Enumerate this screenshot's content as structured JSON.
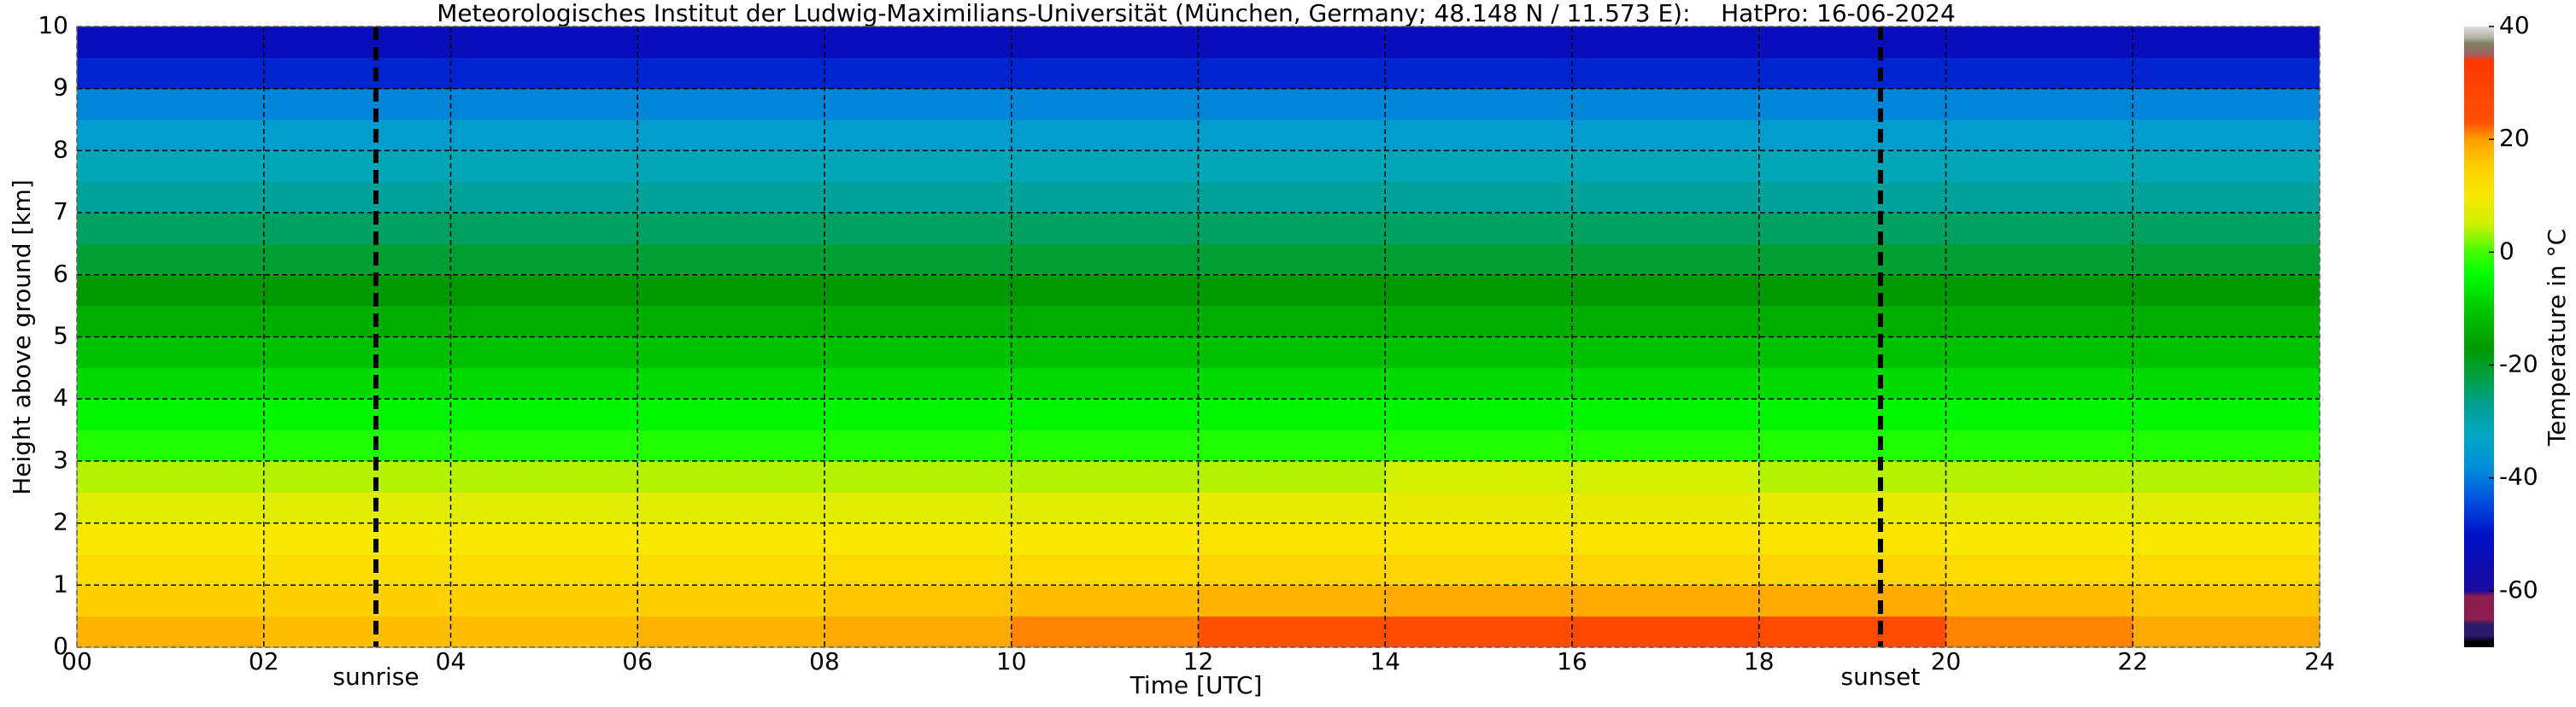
{
  "chart_data": {
    "type": "heatmap",
    "title": "Meteorologisches Institut der Ludwig-Maximilians-Universität (München, Germany; 48.148 N / 11.573 E):    HatPro: 16-06-2024",
    "xlabel": "Time [UTC]",
    "ylabel": "Height above ground [km]",
    "colorbar_label": "Temperature in °C",
    "xlim": [
      0,
      24
    ],
    "ylim": [
      0,
      10
    ],
    "xticks": [
      {
        "value": 0,
        "label": "00"
      },
      {
        "value": 2,
        "label": "02"
      },
      {
        "value": 4,
        "label": "04"
      },
      {
        "value": 6,
        "label": "06"
      },
      {
        "value": 8,
        "label": "08"
      },
      {
        "value": 10,
        "label": "10"
      },
      {
        "value": 12,
        "label": "12"
      },
      {
        "value": 14,
        "label": "14"
      },
      {
        "value": 16,
        "label": "16"
      },
      {
        "value": 18,
        "label": "18"
      },
      {
        "value": 20,
        "label": "20"
      },
      {
        "value": 22,
        "label": "22"
      },
      {
        "value": 24,
        "label": "24"
      }
    ],
    "yticks": [
      0,
      1,
      2,
      3,
      4,
      5,
      6,
      7,
      8,
      9,
      10
    ],
    "grid": true,
    "x_edges": [
      0,
      2,
      4,
      6,
      8,
      10,
      12,
      14,
      16,
      18,
      20,
      22,
      24
    ],
    "y_edges": [
      0,
      0.5,
      1,
      1.5,
      2,
      2.5,
      3,
      3.5,
      4,
      4.5,
      5,
      5.5,
      6,
      6.5,
      7,
      7.5,
      8,
      8.5,
      9,
      9.5,
      10
    ],
    "z": [
      [
        18,
        17,
        17,
        18,
        19,
        21,
        23,
        25,
        26,
        25,
        21,
        19
      ],
      [
        15,
        15,
        15,
        15,
        16,
        17,
        18,
        19,
        19,
        19,
        17,
        16
      ],
      [
        12,
        12,
        12,
        12,
        13,
        13,
        14,
        14,
        14,
        14,
        13,
        13
      ],
      [
        10,
        10,
        10,
        10,
        10,
        10,
        11,
        11,
        11,
        11,
        10,
        10
      ],
      [
        7,
        7,
        7,
        7,
        7,
        7,
        8,
        8,
        8,
        8,
        7,
        7
      ],
      [
        4,
        4,
        4,
        4,
        4,
        4,
        4,
        5,
        5,
        4,
        4,
        4
      ],
      [
        -2,
        -2,
        -2,
        -2,
        -2,
        -2,
        -2,
        -2,
        -2,
        -2,
        -2,
        -2
      ],
      [
        -5,
        -5,
        -5,
        -5,
        -5,
        -5,
        -5,
        -5,
        -5,
        -5,
        -5,
        -5
      ],
      [
        -8,
        -8,
        -8,
        -8,
        -8,
        -8,
        -8,
        -8,
        -8,
        -8,
        -8,
        -8
      ],
      [
        -11,
        -11,
        -11,
        -11,
        -11,
        -11,
        -11,
        -11,
        -11,
        -11,
        -11,
        -11
      ],
      [
        -14,
        -14,
        -14,
        -14,
        -14,
        -14,
        -14,
        -14,
        -14,
        -14,
        -14,
        -14
      ],
      [
        -17,
        -17,
        -17,
        -17,
        -17,
        -17,
        -17,
        -17,
        -17,
        -17,
        -17,
        -17
      ],
      [
        -21,
        -21,
        -21,
        -21,
        -21,
        -21,
        -21,
        -21,
        -21,
        -21,
        -21,
        -21
      ],
      [
        -24,
        -24,
        -24,
        -24,
        -24,
        -24,
        -24,
        -24,
        -24,
        -24,
        -24,
        -24
      ],
      [
        -28,
        -28,
        -28,
        -28,
        -28,
        -28,
        -28,
        -28,
        -28,
        -28,
        -28,
        -28
      ],
      [
        -31,
        -31,
        -31,
        -31,
        -31,
        -31,
        -31,
        -31,
        -31,
        -31,
        -31,
        -31
      ],
      [
        -35,
        -35,
        -35,
        -35,
        -35,
        -35,
        -35,
        -35,
        -35,
        -35,
        -35,
        -35
      ],
      [
        -39,
        -39,
        -39,
        -39,
        -39,
        -39,
        -39,
        -39,
        -39,
        -39,
        -39,
        -39
      ],
      [
        -48,
        -48,
        -48,
        -48,
        -48,
        -48,
        -48,
        -48,
        -48,
        -48,
        -48,
        -48
      ],
      [
        -53,
        -53,
        -53,
        -53,
        -53,
        -53,
        -53,
        -53,
        -53,
        -53,
        -53,
        -53
      ]
    ],
    "zlim": [
      -70,
      40
    ],
    "zticks": [
      -60,
      -40,
      -20,
      0,
      20,
      40
    ],
    "colorscale": [
      [
        -70,
        "#000000"
      ],
      [
        -69,
        "#000000"
      ],
      [
        -68,
        "#2b1a6b"
      ],
      [
        -66,
        "#2b1a6b"
      ],
      [
        -65,
        "#8b1e4e"
      ],
      [
        -61,
        "#8b1e4e"
      ],
      [
        -60,
        "#1a0aa0"
      ],
      [
        -50,
        "#0010c8"
      ],
      [
        -44,
        "#0050e0"
      ],
      [
        -38,
        "#0090d8"
      ],
      [
        -32,
        "#00a8c0"
      ],
      [
        -27,
        "#00a090"
      ],
      [
        -22,
        "#00a040"
      ],
      [
        -17,
        "#009a00"
      ],
      [
        -10,
        "#00c800"
      ],
      [
        -4,
        "#00ff00"
      ],
      [
        0,
        "#40ff00"
      ],
      [
        5,
        "#d0f000"
      ],
      [
        10,
        "#f8e800"
      ],
      [
        15,
        "#ffd000"
      ],
      [
        20,
        "#ffa000"
      ],
      [
        23,
        "#ff5000"
      ],
      [
        34,
        "#ff3800"
      ],
      [
        35,
        "#a06060"
      ],
      [
        37,
        "#808060"
      ],
      [
        38,
        "#b0b0a0"
      ],
      [
        40,
        "#e0e0e0"
      ]
    ],
    "vlines": [
      {
        "x": 3.2,
        "label": "sunrise"
      },
      {
        "x": 19.3,
        "label": "sunset"
      }
    ]
  }
}
